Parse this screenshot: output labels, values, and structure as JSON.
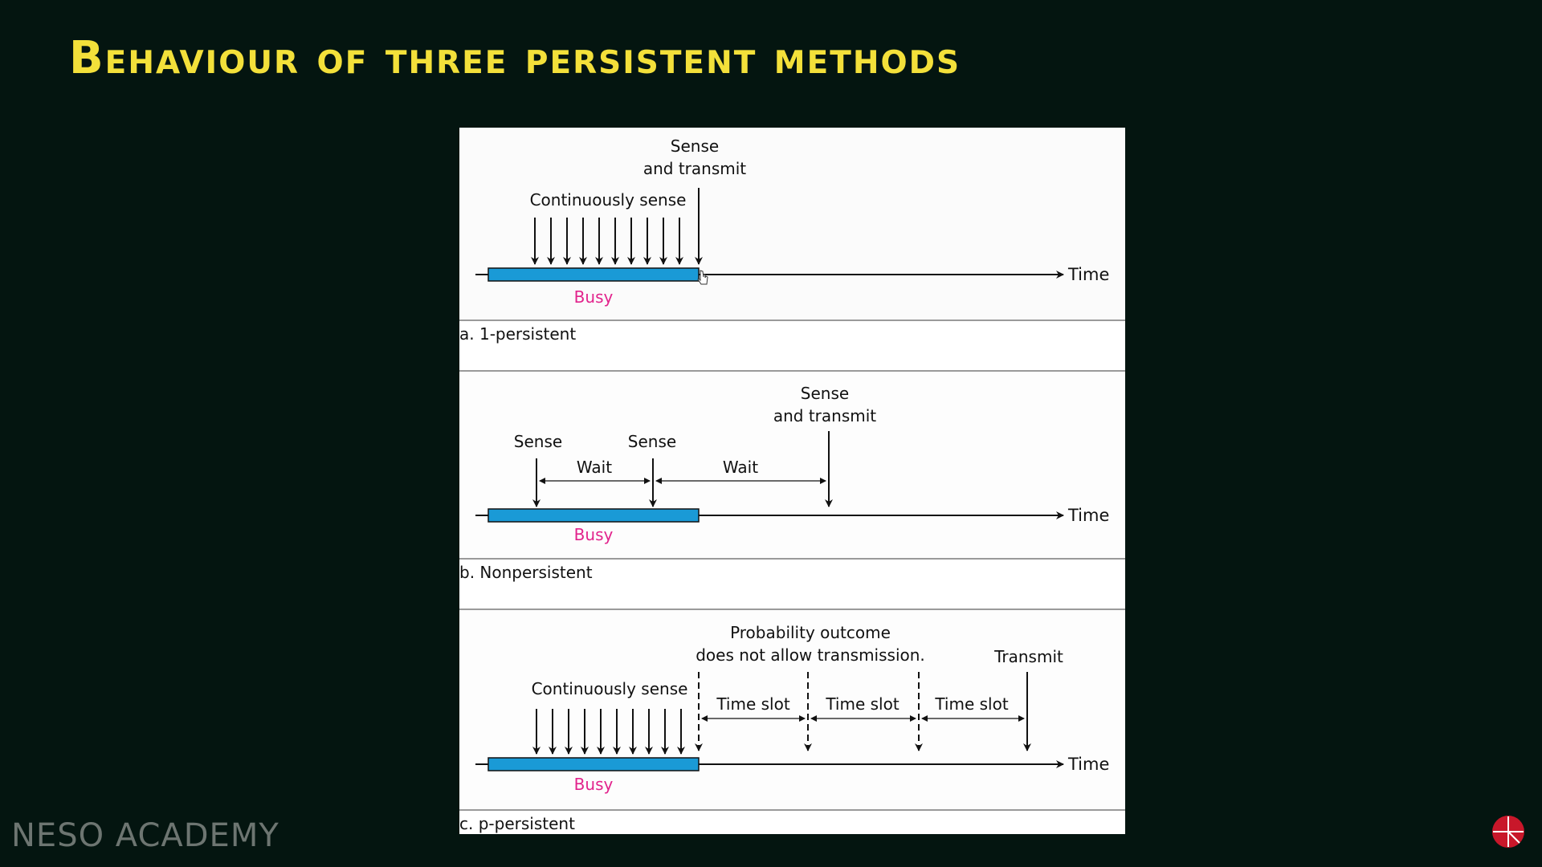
{
  "slide": {
    "title": "Behaviour of three persistent methods",
    "watermark": "NESO ACADEMY"
  },
  "colors": {
    "background": "#041510",
    "title": "#f3e03a",
    "busy_bar": "#1a9ad6",
    "busy_label": "#e2238c",
    "panel": "#fbfbfb"
  },
  "panels": {
    "a": {
      "caption": "a. 1-persistent",
      "continuous_label": "Continuously sense",
      "sense_transmit_line1": "Sense",
      "sense_transmit_line2": "and transmit",
      "busy": "Busy",
      "time": "Time"
    },
    "b": {
      "caption": "b. Nonpersistent",
      "sense1": "Sense",
      "sense2": "Sense",
      "wait1": "Wait",
      "wait2": "Wait",
      "sense_transmit_line1": "Sense",
      "sense_transmit_line2": "and transmit",
      "busy": "Busy",
      "time": "Time"
    },
    "c": {
      "caption": "c. p-persistent",
      "continuous_label": "Continuously sense",
      "outcome_line1": "Probability outcome",
      "outcome_line2": "does not allow transmission.",
      "transmit": "Transmit",
      "slot1": "Time slot",
      "slot2": "Time slot",
      "slot3": "Time slot",
      "busy": "Busy",
      "time": "Time"
    }
  },
  "icons": {
    "logo": "neso-logo-icon",
    "cursor": "hand-cursor-icon"
  }
}
